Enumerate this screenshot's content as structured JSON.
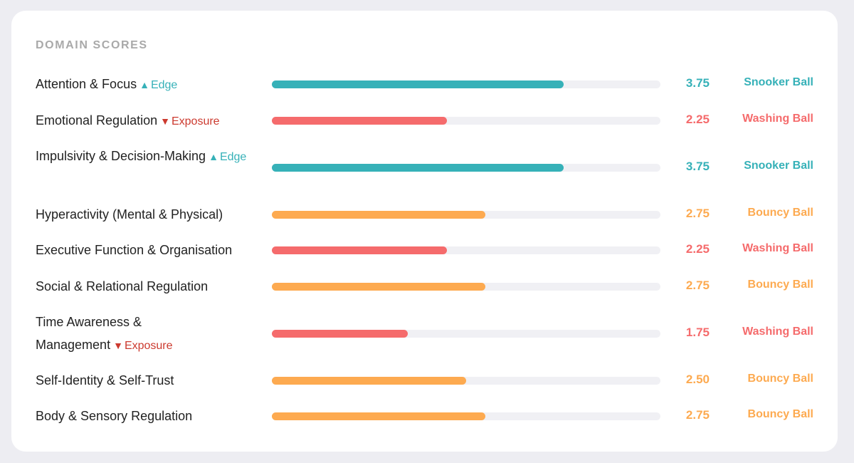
{
  "panel": {
    "title": "DOMAIN SCORES"
  },
  "colors": {
    "teal": "#36b1b8",
    "red": "#f56b6c",
    "orange": "#fdaa50",
    "edge_marker": "#36b1b8",
    "exposure_marker": "#cc3a2f"
  },
  "scale_max": 5,
  "domains": [
    {
      "label": "Attention & Focus",
      "marker": "up",
      "marker_label": "Edge",
      "score": 3.75,
      "score_text": "3.75",
      "category": "Snooker Ball",
      "color": "#36b1b8"
    },
    {
      "label": "Emotional Regulation",
      "marker": "down",
      "marker_label": "Exposure",
      "score": 2.25,
      "score_text": "2.25",
      "category": "Washing Ball",
      "color": "#f56b6c"
    },
    {
      "label": "Impulsivity & Decision-Making",
      "marker": "up",
      "marker_label": "Edge",
      "score": 3.75,
      "score_text": "3.75",
      "category": "Snooker Ball",
      "color": "#36b1b8"
    },
    {
      "label": "Hyperactivity (Mental & Physical)",
      "marker": "",
      "marker_label": "",
      "score": 2.75,
      "score_text": "2.75",
      "category": "Bouncy Ball",
      "color": "#fdaa50"
    },
    {
      "label": "Executive Function & Organisation",
      "marker": "",
      "marker_label": "",
      "score": 2.25,
      "score_text": "2.25",
      "category": "Washing Ball",
      "color": "#f56b6c"
    },
    {
      "label": "Social & Relational Regulation",
      "marker": "",
      "marker_label": "",
      "score": 2.75,
      "score_text": "2.75",
      "category": "Bouncy Ball",
      "color": "#fdaa50"
    },
    {
      "label": "Time Awareness & Management",
      "marker": "down",
      "marker_label": "Exposure",
      "score": 1.75,
      "score_text": "1.75",
      "category": "Washing Ball",
      "color": "#f56b6c"
    },
    {
      "label": "Self-Identity & Self-Trust",
      "marker": "",
      "marker_label": "",
      "score": 2.5,
      "score_text": "2.50",
      "category": "Bouncy Ball",
      "color": "#fdaa50"
    },
    {
      "label": "Body & Sensory Regulation",
      "marker": "",
      "marker_label": "",
      "score": 2.75,
      "score_text": "2.75",
      "category": "Bouncy Ball",
      "color": "#fdaa50"
    }
  ]
}
